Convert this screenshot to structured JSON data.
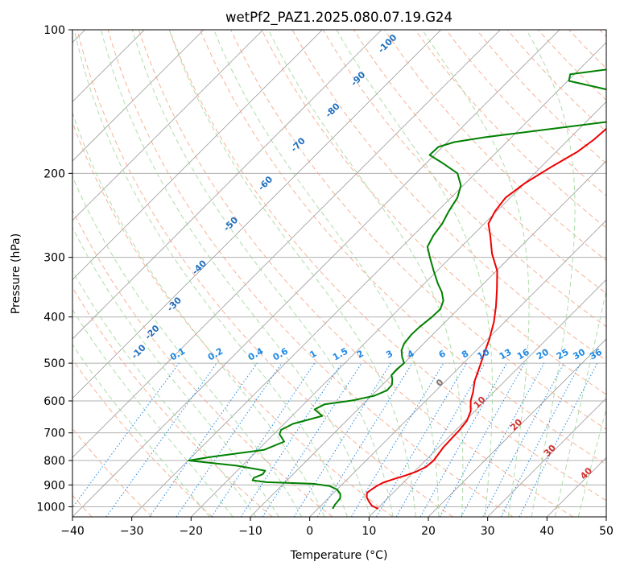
{
  "chart_data": {
    "type": "skew-t",
    "title": "wetPf2_PAZ1.2025.080.07.19.G24",
    "xlabel": "Temperature (°C)",
    "ylabel": "Pressure (hPa)",
    "xlim": [
      -40,
      50
    ],
    "ylim": [
      1050,
      100
    ],
    "x_ticks": [
      "−40",
      "−30",
      "−20",
      "−10",
      "0",
      "10",
      "20",
      "30",
      "40",
      "50"
    ],
    "y_ticks": [
      "100",
      "200",
      "300",
      "400",
      "500",
      "600",
      "700",
      "800",
      "900",
      "1000"
    ],
    "y_scale": "log",
    "grid": true,
    "colors": {
      "temperature": "#ee0000",
      "dewpoint": "#008000",
      "dry_adiabat": "#f4a582",
      "moist_adiabat": "#a6d8a0",
      "mixing_ratio": "#1e88e5",
      "isotherm": "#888888",
      "grid": "#b0b0b0"
    },
    "series": [
      {
        "id": "temperature",
        "color": "#ee0000",
        "points": [
          [
            1010,
            10.2
          ],
          [
            995,
            8.6
          ],
          [
            975,
            7.4
          ],
          [
            955,
            6.3
          ],
          [
            935,
            5.6
          ],
          [
            920,
            5.8
          ],
          [
            905,
            6.1
          ],
          [
            890,
            6.6
          ],
          [
            875,
            7.8
          ],
          [
            860,
            9.2
          ],
          [
            845,
            10.3
          ],
          [
            825,
            11.2
          ],
          [
            800,
            11.4
          ],
          [
            775,
            11.1
          ],
          [
            750,
            10.8
          ],
          [
            720,
            10.7
          ],
          [
            690,
            10.6
          ],
          [
            660,
            10.3
          ],
          [
            630,
            9.3
          ],
          [
            600,
            7.6
          ],
          [
            575,
            6.5
          ],
          [
            545,
            4.9
          ],
          [
            510,
            3.4
          ],
          [
            480,
            2.0
          ],
          [
            445,
            0.3
          ],
          [
            410,
            -1.8
          ],
          [
            380,
            -4.1
          ],
          [
            350,
            -6.8
          ],
          [
            320,
            -9.9
          ],
          [
            295,
            -13.6
          ],
          [
            270,
            -17.0
          ],
          [
            255,
            -19.3
          ],
          [
            240,
            -20.3
          ],
          [
            225,
            -20.8
          ],
          [
            210,
            -20.0
          ],
          [
            195,
            -18.4
          ],
          [
            180,
            -16.4
          ],
          [
            170,
            -15.7
          ],
          [
            160,
            -15.4
          ],
          [
            150,
            -15.8
          ],
          [
            140,
            -16.3
          ],
          [
            130,
            -17.3
          ],
          [
            120,
            -17.6
          ],
          [
            112,
            -18.3
          ],
          [
            105,
            -19.2
          ],
          [
            100,
            -19.8
          ]
        ]
      },
      {
        "id": "dewpoint",
        "color": "#008000",
        "points": [
          [
            1010,
            2.5
          ],
          [
            990,
            2.2
          ],
          [
            960,
            2.0
          ],
          [
            940,
            1.3
          ],
          [
            920,
            0.0
          ],
          [
            905,
            -1.8
          ],
          [
            895,
            -5.0
          ],
          [
            888,
            -13.2
          ],
          [
            880,
            -15.8
          ],
          [
            870,
            -16.0
          ],
          [
            855,
            -15.1
          ],
          [
            840,
            -15.3
          ],
          [
            820,
            -21.0
          ],
          [
            800,
            -29.9
          ],
          [
            785,
            -26.5
          ],
          [
            760,
            -19.0
          ],
          [
            730,
            -17.0
          ],
          [
            705,
            -19.0
          ],
          [
            690,
            -19.5
          ],
          [
            670,
            -18.5
          ],
          [
            645,
            -14.9
          ],
          [
            625,
            -17.3
          ],
          [
            610,
            -16.5
          ],
          [
            598,
            -12.3
          ],
          [
            585,
            -9.5
          ],
          [
            570,
            -8.3
          ],
          [
            555,
            -8.4
          ],
          [
            540,
            -9.3
          ],
          [
            530,
            -10.1
          ],
          [
            515,
            -10.2
          ],
          [
            500,
            -10.0
          ],
          [
            485,
            -11.4
          ],
          [
            470,
            -12.6
          ],
          [
            455,
            -13.3
          ],
          [
            435,
            -13.6
          ],
          [
            420,
            -13.5
          ],
          [
            400,
            -13.1
          ],
          [
            385,
            -13.0
          ],
          [
            370,
            -13.9
          ],
          [
            355,
            -15.6
          ],
          [
            340,
            -17.8
          ],
          [
            320,
            -20.6
          ],
          [
            300,
            -23.5
          ],
          [
            285,
            -25.7
          ],
          [
            270,
            -26.6
          ],
          [
            255,
            -27.1
          ],
          [
            240,
            -28.1
          ],
          [
            225,
            -28.9
          ],
          [
            212,
            -30.4
          ],
          [
            200,
            -33.0
          ],
          [
            190,
            -37.4
          ],
          [
            183,
            -40.8
          ],
          [
            176,
            -40.7
          ],
          [
            172,
            -38.8
          ],
          [
            168,
            -34.5
          ],
          [
            163,
            -27.2
          ],
          [
            156,
            -16.5
          ],
          [
            150,
            -12.9
          ],
          [
            143,
            -13.7
          ],
          [
            137,
            -17.0
          ],
          [
            132,
            -24.0
          ],
          [
            128,
            -29.8
          ],
          [
            124,
            -30.7
          ],
          [
            118,
            -19.4
          ],
          [
            112,
            -10.6
          ],
          [
            106,
            -5.8
          ],
          [
            100,
            -7.0
          ]
        ]
      }
    ],
    "mixing_ratio_labels": [
      "0.1",
      "0.2",
      "0.4",
      "0.6",
      "1",
      "1.5",
      "2",
      "3",
      "4",
      "6",
      "8",
      "10",
      "13",
      "16",
      "20",
      "25",
      "30",
      "36"
    ],
    "moist_adiabat_labels": [
      "0",
      "10",
      "20",
      "30",
      "40"
    ],
    "dry_adiabat_labels": [
      "-100",
      "-90",
      "-80",
      "-70",
      "-60",
      "-50",
      "-40",
      "-30",
      "-20",
      "-10"
    ]
  }
}
